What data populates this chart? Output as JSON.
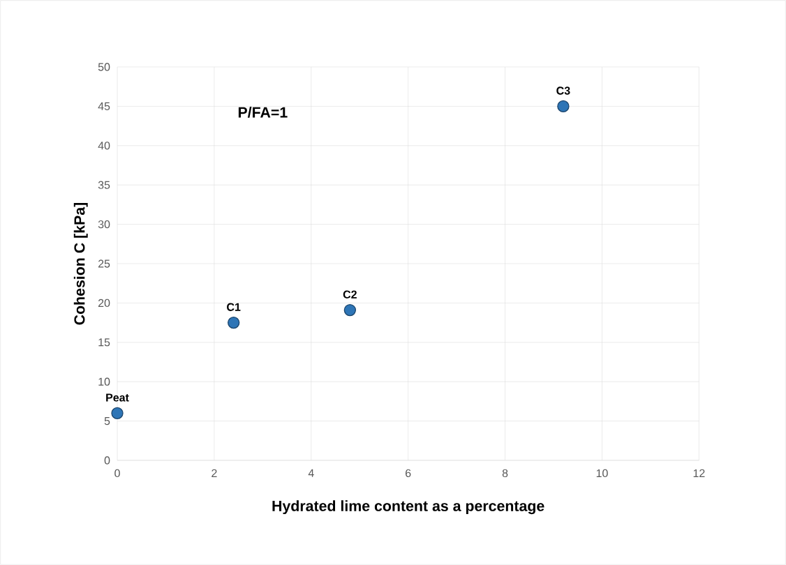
{
  "chart_data": {
    "type": "scatter",
    "xlabel": "Hydrated lime content as a percentage",
    "ylabel": "Cohesion C [kPa]",
    "x": [
      0,
      2.4,
      4.8,
      9.2
    ],
    "series": [
      {
        "color": "#2e75b6",
        "values": [
          6,
          17.5,
          19.1,
          45
        ]
      }
    ],
    "xlim": [
      0,
      12
    ],
    "ylim": [
      0,
      50
    ],
    "xticks": [
      0,
      2,
      4,
      6,
      8,
      10,
      12
    ],
    "yticks": [
      0,
      5,
      10,
      15,
      20,
      25,
      30,
      35,
      40,
      45,
      50
    ],
    "grid": true,
    "marker": "circle",
    "annotations": [
      {
        "text": "Peat",
        "x": 0,
        "y": 6
      },
      {
        "text": "C1",
        "x": 2.4,
        "y": 17.5
      },
      {
        "text": "C2",
        "x": 4.8,
        "y": 19.1
      },
      {
        "text": "C3",
        "x": 9.2,
        "y": 45
      },
      "P/FA=1"
    ]
  }
}
